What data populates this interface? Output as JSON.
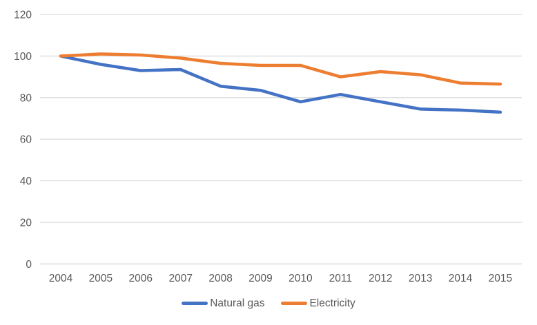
{
  "chart_data": {
    "type": "line",
    "title": "",
    "xlabel": "",
    "ylabel": "",
    "categories": [
      "2004",
      "2005",
      "2006",
      "2007",
      "2008",
      "2009",
      "2010",
      "2011",
      "2012",
      "2013",
      "2014",
      "2015"
    ],
    "series": [
      {
        "name": "Natural gas",
        "color": "#4472C4",
        "values": [
          100,
          96,
          93,
          93.5,
          85.5,
          83.5,
          78,
          81.5,
          78,
          74.5,
          74,
          73
        ]
      },
      {
        "name": "Electricity",
        "color": "#ED7D31",
        "values": [
          100,
          101,
          100.5,
          99,
          96.5,
          95.5,
          95.5,
          90,
          92.5,
          91,
          87,
          86.5
        ]
      }
    ],
    "ylim": [
      0,
      120
    ],
    "yticks": [
      0,
      20,
      40,
      60,
      80,
      100,
      120
    ],
    "grid": true,
    "legend_position": "bottom",
    "gridline_color": "#D9D9D9",
    "axis_text_color": "#595959"
  }
}
